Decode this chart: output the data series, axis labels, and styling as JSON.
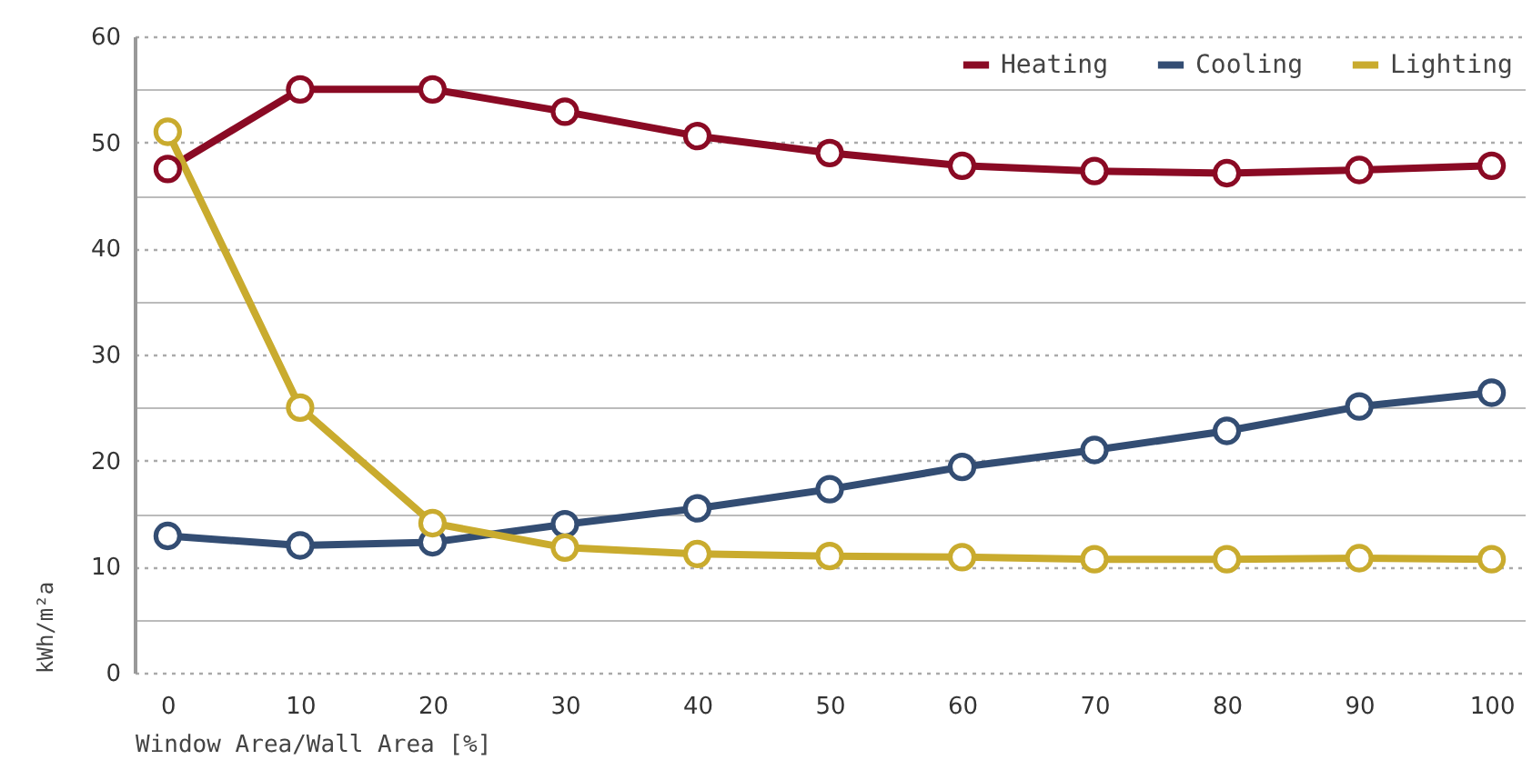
{
  "chart_data": {
    "type": "line",
    "xlabel": "Window Area/Wall Area [%]",
    "ylabel": "kWh/m²a",
    "categories": [
      "0",
      "10",
      "20",
      "30",
      "40",
      "50",
      "60",
      "70",
      "80",
      "90",
      "100"
    ],
    "series": [
      {
        "name": "Heating",
        "color": "#8a0a24",
        "values": [
          47.5,
          55,
          55,
          52.9,
          50.6,
          49,
          47.8,
          47.3,
          47.1,
          47.4,
          47.8
        ]
      },
      {
        "name": "Cooling",
        "color": "#334d73",
        "values": [
          12.9,
          12,
          12.3,
          14,
          15.5,
          17.3,
          19.4,
          21,
          22.8,
          25.1,
          26.4
        ]
      },
      {
        "name": "Lighting",
        "color": "#c9ab2e",
        "values": [
          51,
          25,
          14.1,
          11.8,
          11.2,
          11,
          10.9,
          10.7,
          10.7,
          10.8,
          10.7
        ]
      }
    ],
    "ylim": [
      0,
      60
    ],
    "yticks": [
      0,
      {
        "value": 5,
        "label": null
      },
      10,
      {
        "value": 15,
        "label": null
      },
      20,
      {
        "value": 25,
        "label": null
      },
      30,
      {
        "value": 35,
        "label": null
      },
      40,
      {
        "value": 45,
        "label": null
      },
      50,
      {
        "value": 55,
        "label": null
      },
      60
    ],
    "grid": "y",
    "legend": "top right",
    "marker": "circle",
    "line_style": "solid"
  }
}
